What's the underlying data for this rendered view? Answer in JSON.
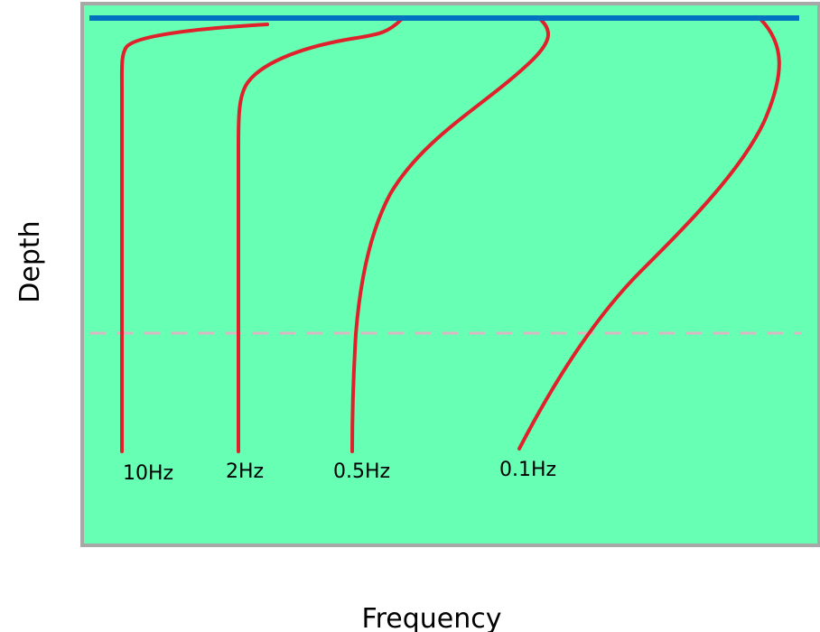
{
  "labels": {
    "y_axis": "Depth",
    "x_axis": "Frequency"
  },
  "curves": [
    {
      "label": "10Hz"
    },
    {
      "label": "2Hz"
    },
    {
      "label": "0.5Hz"
    },
    {
      "label": "0.1Hz"
    }
  ],
  "colors": {
    "panel_fill": "#66FFB3",
    "panel_border": "#A8A8A8",
    "surface_line": "#0070C0",
    "curve": "#E0202A",
    "reference_dash": "#D9B8C4"
  }
}
